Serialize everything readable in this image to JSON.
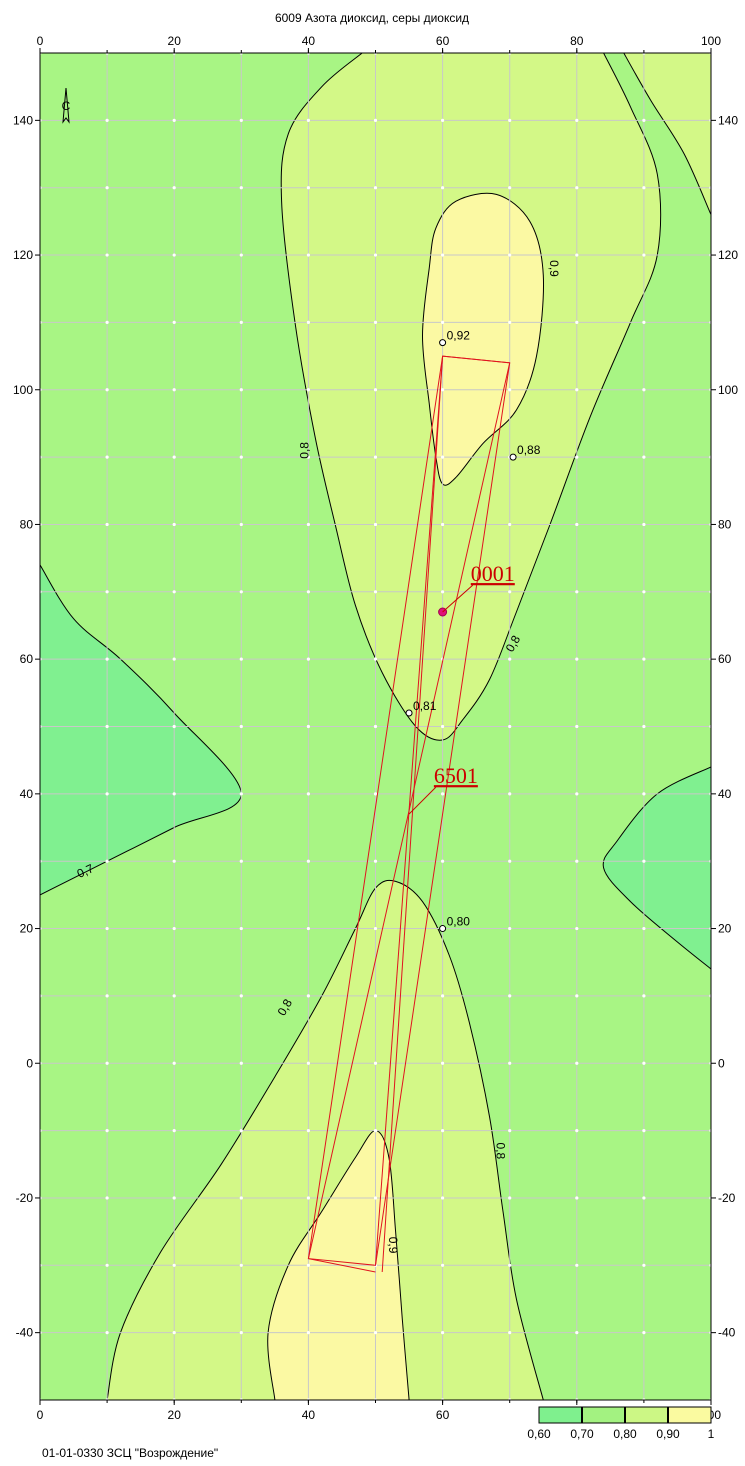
{
  "title": "6009 Азота диоксид, серы диоксид",
  "footer_text": "01-01-0330 ЗСЦ \"Возрождение\"",
  "north_marker": "С",
  "axes": {
    "x": {
      "min": 0,
      "max": 100,
      "ticks": [
        "0",
        "20",
        "40",
        "60",
        "80",
        "100"
      ]
    },
    "y": {
      "min": -50,
      "max": 150,
      "ticks": [
        "140",
        "120",
        "100",
        "80",
        "60",
        "40",
        "20",
        "0",
        "-20",
        "-40"
      ]
    }
  },
  "contour_labels": [
    {
      "text": "0,7",
      "x": 7,
      "y": 28,
      "angle": -25
    },
    {
      "text": "0,8",
      "x": 40,
      "y": 91,
      "angle": -90
    },
    {
      "text": "0,8",
      "x": 71,
      "y": 62,
      "angle": -60
    },
    {
      "text": "0,8",
      "x": 37,
      "y": 8,
      "angle": -60
    },
    {
      "text": "0,8",
      "x": 68,
      "y": -13,
      "angle": 90
    },
    {
      "text": "0,9",
      "x": 76,
      "y": 118,
      "angle": 90
    },
    {
      "text": "0,9",
      "x": 52,
      "y": -27,
      "angle": 90
    }
  ],
  "points": [
    {
      "label": "0,92",
      "x": 60,
      "y": 107
    },
    {
      "label": "0,88",
      "x": 70.5,
      "y": 90
    },
    {
      "label": "0,81",
      "x": 55,
      "y": 52
    },
    {
      "label": "0,80",
      "x": 60,
      "y": 20
    }
  ],
  "sources": [
    {
      "id": "0001",
      "x": 60,
      "y": 67,
      "label_x": 64.5,
      "label_y": 71
    },
    {
      "id": "6501",
      "x": 55,
      "y": 37,
      "label_x": 59,
      "label_y": 41
    }
  ],
  "legend": {
    "colors": [
      "#7ff08e",
      "#a3f281",
      "#ccf785",
      "#fafaa0"
    ],
    "labels": [
      "0,60",
      "0,70",
      "0,80",
      "0,90",
      "1"
    ]
  },
  "fill_colors": {
    "low": "#80f090",
    "mid": "#a8f584",
    "high": "#d3f887",
    "peak": "#fbf9a3"
  }
}
